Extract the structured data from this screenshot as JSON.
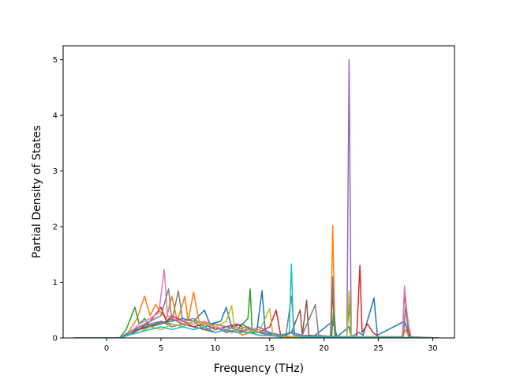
{
  "chart_data": {
    "type": "line",
    "title": "",
    "xlabel": "Frequency (THz)",
    "ylabel": "Partial Density of States",
    "xlim": [
      -4,
      32
    ],
    "ylim": [
      0,
      5.25
    ],
    "xticks": [
      0,
      5,
      10,
      15,
      20,
      25,
      30
    ],
    "yticks": [
      0,
      1,
      2,
      3,
      4,
      5
    ],
    "grid": false,
    "legend": "none",
    "series": [
      {
        "color": "#1f77b4",
        "points": [
          [
            -3,
            0
          ],
          [
            1.2,
            0
          ],
          [
            1.8,
            0.05
          ],
          [
            2.5,
            0.12
          ],
          [
            3.2,
            0.18
          ],
          [
            4,
            0.22
          ],
          [
            5,
            0.28
          ],
          [
            6,
            0.3
          ],
          [
            7,
            0.35
          ],
          [
            8,
            0.3
          ],
          [
            9,
            0.5
          ],
          [
            9.5,
            0.25
          ],
          [
            10.5,
            0.3
          ],
          [
            11,
            0.55
          ],
          [
            11.5,
            0.2
          ],
          [
            12.5,
            0.25
          ],
          [
            13.2,
            0.15
          ],
          [
            13.8,
            0.1
          ],
          [
            14.3,
            0.85
          ],
          [
            14.6,
            0.1
          ],
          [
            15.5,
            0.05
          ],
          [
            16.5,
            0.05
          ],
          [
            17,
            0.1
          ],
          [
            17.4,
            0.02
          ],
          [
            19,
            0.02
          ],
          [
            20.8,
            0.3
          ],
          [
            21.2,
            0.02
          ],
          [
            22.3,
            0.2
          ],
          [
            22.5,
            0.02
          ],
          [
            23.2,
            0.1
          ],
          [
            23.6,
            0.05
          ],
          [
            24.6,
            0.72
          ],
          [
            24.9,
            0.05
          ],
          [
            27.4,
            0.3
          ],
          [
            27.8,
            0.05
          ],
          [
            28.2,
            0
          ],
          [
            30.5,
            0
          ]
        ]
      },
      {
        "color": "#ff7f0e",
        "points": [
          [
            -3,
            0
          ],
          [
            1.2,
            0
          ],
          [
            2,
            0.1
          ],
          [
            2.8,
            0.35
          ],
          [
            3.5,
            0.75
          ],
          [
            4,
            0.4
          ],
          [
            4.5,
            0.6
          ],
          [
            5,
            0.45
          ],
          [
            5.5,
            0.35
          ],
          [
            6,
            0.75
          ],
          [
            6.5,
            0.3
          ],
          [
            7.2,
            0.75
          ],
          [
            7.5,
            0.3
          ],
          [
            8,
            0.82
          ],
          [
            8.5,
            0.3
          ],
          [
            9.5,
            0.25
          ],
          [
            10.5,
            0.15
          ],
          [
            11.5,
            0.1
          ],
          [
            12,
            0.12
          ],
          [
            12.5,
            0.05
          ],
          [
            13.2,
            0.1
          ],
          [
            14,
            0.05
          ],
          [
            16,
            0.03
          ],
          [
            17,
            0.02
          ],
          [
            20.6,
            0.02
          ],
          [
            20.8,
            2.02
          ],
          [
            21,
            0.02
          ],
          [
            22,
            0.02
          ],
          [
            27.2,
            0.02
          ],
          [
            27.5,
            0.15
          ],
          [
            27.8,
            0.02
          ],
          [
            30.5,
            0
          ]
        ]
      },
      {
        "color": "#2ca02c",
        "points": [
          [
            -3,
            0
          ],
          [
            1.2,
            0
          ],
          [
            1.8,
            0.15
          ],
          [
            2.3,
            0.4
          ],
          [
            2.6,
            0.55
          ],
          [
            3,
            0.25
          ],
          [
            3.5,
            0.35
          ],
          [
            4,
            0.2
          ],
          [
            5,
            0.3
          ],
          [
            6,
            0.25
          ],
          [
            7,
            0.2
          ],
          [
            8,
            0.3
          ],
          [
            9,
            0.15
          ],
          [
            10,
            0.2
          ],
          [
            11,
            0.1
          ],
          [
            12,
            0.15
          ],
          [
            13,
            0.35
          ],
          [
            13.2,
            0.88
          ],
          [
            13.4,
            0.1
          ],
          [
            14.5,
            0.1
          ],
          [
            15,
            0.05
          ],
          [
            16,
            0.02
          ],
          [
            17,
            0.02
          ],
          [
            20.7,
            0.02
          ],
          [
            20.9,
            0.55
          ],
          [
            21.1,
            0.02
          ],
          [
            22.1,
            0.02
          ],
          [
            22.3,
            0.6
          ],
          [
            22.5,
            0.02
          ],
          [
            30.5,
            0
          ]
        ]
      },
      {
        "color": "#d62728",
        "points": [
          [
            -3,
            0
          ],
          [
            1.2,
            0
          ],
          [
            2,
            0.05
          ],
          [
            3,
            0.15
          ],
          [
            4,
            0.3
          ],
          [
            5,
            0.55
          ],
          [
            5.5,
            0.3
          ],
          [
            6,
            0.4
          ],
          [
            7,
            0.3
          ],
          [
            8,
            0.2
          ],
          [
            9,
            0.25
          ],
          [
            10,
            0.15
          ],
          [
            11,
            0.2
          ],
          [
            12,
            0.25
          ],
          [
            13,
            0.15
          ],
          [
            14,
            0.1
          ],
          [
            15,
            0.2
          ],
          [
            15.6,
            0.5
          ],
          [
            16,
            0.05
          ],
          [
            17,
            0.02
          ],
          [
            20.6,
            0.02
          ],
          [
            20.8,
            0.85
          ],
          [
            21,
            0.02
          ],
          [
            23,
            0.02
          ],
          [
            23.3,
            1.3
          ],
          [
            23.5,
            0.1
          ],
          [
            24,
            0.25
          ],
          [
            24.5,
            0.1
          ],
          [
            25,
            0.02
          ],
          [
            27.2,
            0.02
          ],
          [
            27.4,
            0.78
          ],
          [
            27.6,
            0.5
          ],
          [
            27.9,
            0.02
          ],
          [
            30.5,
            0
          ]
        ]
      },
      {
        "color": "#9467bd",
        "points": [
          [
            -3,
            0
          ],
          [
            1.2,
            0
          ],
          [
            2,
            0.05
          ],
          [
            3,
            0.2
          ],
          [
            4,
            0.25
          ],
          [
            5,
            0.3
          ],
          [
            6,
            0.2
          ],
          [
            7,
            0.25
          ],
          [
            8,
            0.2
          ],
          [
            9,
            0.15
          ],
          [
            10,
            0.2
          ],
          [
            11,
            0.1
          ],
          [
            12,
            0.15
          ],
          [
            13,
            0.1
          ],
          [
            14,
            0.2
          ],
          [
            15,
            0.1
          ],
          [
            16,
            0.05
          ],
          [
            17,
            0.1
          ],
          [
            18,
            0.05
          ],
          [
            22.1,
            0.02
          ],
          [
            22.3,
            5.0
          ],
          [
            22.5,
            0.02
          ],
          [
            24,
            0.02
          ],
          [
            30.5,
            0
          ]
        ]
      },
      {
        "color": "#8c564b",
        "points": [
          [
            -3,
            0
          ],
          [
            1.2,
            0
          ],
          [
            2,
            0.05
          ],
          [
            3,
            0.15
          ],
          [
            4,
            0.2
          ],
          [
            5,
            0.25
          ],
          [
            6,
            0.35
          ],
          [
            7,
            0.25
          ],
          [
            8,
            0.2
          ],
          [
            9,
            0.15
          ],
          [
            10,
            0.1
          ],
          [
            11,
            0.15
          ],
          [
            12,
            0.1
          ],
          [
            13,
            0.15
          ],
          [
            14,
            0.1
          ],
          [
            15,
            0.05
          ],
          [
            16,
            0.05
          ],
          [
            17,
            0.1
          ],
          [
            17.8,
            0.5
          ],
          [
            18,
            0.05
          ],
          [
            18.4,
            0.68
          ],
          [
            18.6,
            0.05
          ],
          [
            19.5,
            0.02
          ],
          [
            30.5,
            0
          ]
        ]
      },
      {
        "color": "#e377c2",
        "points": [
          [
            -3,
            0
          ],
          [
            1.2,
            0
          ],
          [
            2,
            0.05
          ],
          [
            3,
            0.25
          ],
          [
            4,
            0.35
          ],
          [
            4.8,
            0.45
          ],
          [
            5.3,
            1.23
          ],
          [
            5.6,
            0.4
          ],
          [
            6,
            0.35
          ],
          [
            7,
            0.3
          ],
          [
            8,
            0.25
          ],
          [
            9,
            0.3
          ],
          [
            10,
            0.2
          ],
          [
            11,
            0.15
          ],
          [
            12,
            0.2
          ],
          [
            13,
            0.1
          ],
          [
            14,
            0.15
          ],
          [
            15,
            0.05
          ],
          [
            16,
            0.02
          ],
          [
            27.2,
            0.02
          ],
          [
            27.4,
            0.94
          ],
          [
            27.7,
            0.3
          ],
          [
            28,
            0.02
          ],
          [
            30.5,
            0
          ]
        ]
      },
      {
        "color": "#7f7f7f",
        "points": [
          [
            -3,
            0
          ],
          [
            1.2,
            0
          ],
          [
            2,
            0.1
          ],
          [
            3,
            0.2
          ],
          [
            4,
            0.3
          ],
          [
            5,
            0.4
          ],
          [
            5.7,
            0.88
          ],
          [
            6,
            0.3
          ],
          [
            6.6,
            0.85
          ],
          [
            7,
            0.3
          ],
          [
            8,
            0.35
          ],
          [
            9,
            0.2
          ],
          [
            10,
            0.25
          ],
          [
            11,
            0.2
          ],
          [
            12,
            0.15
          ],
          [
            13,
            0.2
          ],
          [
            14,
            0.1
          ],
          [
            15,
            0.05
          ],
          [
            16.5,
            0.05
          ],
          [
            17,
            0.75
          ],
          [
            17.3,
            0.05
          ],
          [
            18,
            0.05
          ],
          [
            19.2,
            0.6
          ],
          [
            19.5,
            0.05
          ],
          [
            20.6,
            0.02
          ],
          [
            20.8,
            1.1
          ],
          [
            21,
            0.02
          ],
          [
            27.3,
            0.02
          ],
          [
            27.5,
            0.55
          ],
          [
            27.8,
            0.02
          ],
          [
            30.5,
            0
          ]
        ]
      },
      {
        "color": "#bcbd22",
        "points": [
          [
            -3,
            0
          ],
          [
            1.2,
            0
          ],
          [
            2,
            0.05
          ],
          [
            3,
            0.1
          ],
          [
            4,
            0.2
          ],
          [
            5,
            0.15
          ],
          [
            6,
            0.25
          ],
          [
            7,
            0.2
          ],
          [
            8,
            0.3
          ],
          [
            9,
            0.25
          ],
          [
            10,
            0.2
          ],
          [
            11,
            0.3
          ],
          [
            11.5,
            0.58
          ],
          [
            11.8,
            0.1
          ],
          [
            12.5,
            0.2
          ],
          [
            13,
            0.15
          ],
          [
            14,
            0.1
          ],
          [
            15,
            0.53
          ],
          [
            15.3,
            0.05
          ],
          [
            16,
            0.02
          ],
          [
            22.1,
            0.02
          ],
          [
            22.3,
            0.85
          ],
          [
            22.5,
            0.02
          ],
          [
            30.5,
            0
          ]
        ]
      },
      {
        "color": "#17becf",
        "points": [
          [
            -3,
            0
          ],
          [
            1.2,
            0
          ],
          [
            2,
            0.05
          ],
          [
            3,
            0.1
          ],
          [
            4,
            0.15
          ],
          [
            5,
            0.2
          ],
          [
            6,
            0.15
          ],
          [
            7,
            0.2
          ],
          [
            8,
            0.15
          ],
          [
            9,
            0.2
          ],
          [
            10,
            0.1
          ],
          [
            11,
            0.15
          ],
          [
            12,
            0.1
          ],
          [
            13,
            0.1
          ],
          [
            14,
            0.05
          ],
          [
            15,
            0.05
          ],
          [
            16,
            0.02
          ],
          [
            16.8,
            0.1
          ],
          [
            17,
            1.33
          ],
          [
            17.2,
            0.05
          ],
          [
            18,
            0.02
          ],
          [
            30.5,
            0
          ]
        ]
      }
    ]
  }
}
